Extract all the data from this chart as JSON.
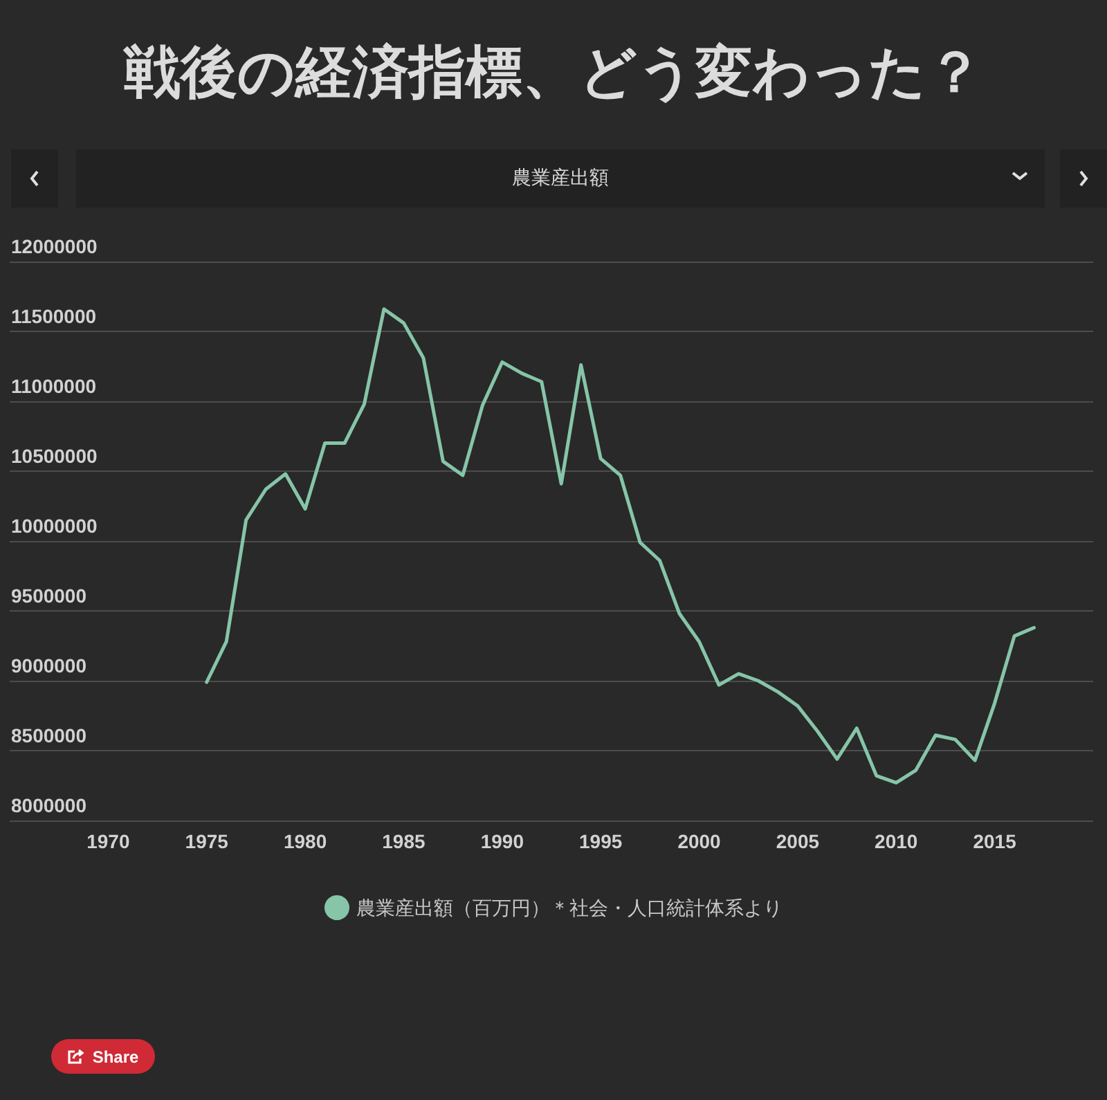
{
  "chart_data": {
    "type": "line",
    "title": "戦後の経済指標、どう変わった？",
    "subtitle": "農業産出額",
    "x": [
      1975,
      1976,
      1977,
      1978,
      1979,
      1980,
      1981,
      1982,
      1983,
      1984,
      1985,
      1986,
      1987,
      1988,
      1989,
      1990,
      1991,
      1992,
      1993,
      1994,
      1995,
      1996,
      1997,
      1998,
      1999,
      2000,
      2001,
      2002,
      2003,
      2004,
      2005,
      2006,
      2007,
      2008,
      2009,
      2010,
      2011,
      2012,
      2013,
      2014,
      2015,
      2016,
      2017
    ],
    "series": [
      {
        "name": "農業産出額（百万円）＊社会・人口統計体系より",
        "color": "#86c5a8",
        "values": [
          8990000,
          9280000,
          10150000,
          10370000,
          10480000,
          10230000,
          10700000,
          10700000,
          10980000,
          11660000,
          11560000,
          11310000,
          10570000,
          10470000,
          10970000,
          11280000,
          11200000,
          11140000,
          10410000,
          11260000,
          10590000,
          10470000,
          9990000,
          9860000,
          9480000,
          9280000,
          8970000,
          9050000,
          9000000,
          8920000,
          8820000,
          8640000,
          8440000,
          8660000,
          8320000,
          8270000,
          8360000,
          8610000,
          8580000,
          8430000,
          8840000,
          9320000,
          9380000
        ]
      }
    ],
    "xlim": [
      1965,
      2020
    ],
    "xticks": [
      1970,
      1975,
      1980,
      1985,
      1990,
      1995,
      2000,
      2005,
      2010,
      2015
    ],
    "ylim": [
      8000000,
      12000000
    ],
    "yticks": [
      8000000,
      8500000,
      9000000,
      9500000,
      10000000,
      10500000,
      11000000,
      11500000,
      12000000
    ],
    "grid": "y",
    "legend": "bottom",
    "annotations": [
      "Share"
    ]
  }
}
